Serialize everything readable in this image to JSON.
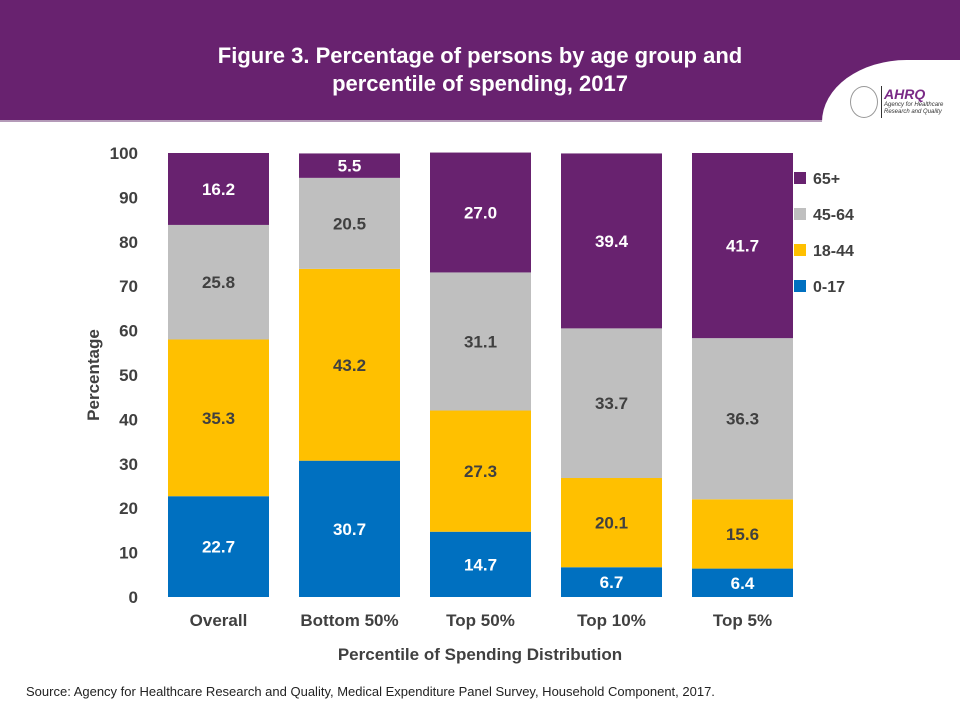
{
  "title_line1": "Figure 3. Percentage of persons by age group and",
  "title_line2": "percentile of spending, 2017",
  "logo": {
    "name": "AHRQ",
    "tagline": "Agency for Healthcare Research and Quality"
  },
  "source": "Source: Agency for Healthcare Research and Quality, Medical Expenditure Panel Survey, Household Component, 2017.",
  "chart_data": {
    "type": "bar",
    "stacked": true,
    "title": "Figure 3. Percentage of persons by age group and percentile of spending, 2017",
    "xlabel": "Percentile of Spending Distribution",
    "ylabel": "Percentage",
    "ylim": [
      0,
      100
    ],
    "yticks": [
      0,
      10,
      20,
      30,
      40,
      50,
      60,
      70,
      80,
      90,
      100
    ],
    "grid": false,
    "legend_position": "right",
    "categories": [
      "Overall",
      "Bottom 50%",
      "Top 50%",
      "Top 10%",
      "Top 5%"
    ],
    "series": [
      {
        "name": "0-17",
        "color": "#0070c0",
        "values": [
          22.7,
          30.7,
          14.7,
          6.7,
          6.4
        ]
      },
      {
        "name": "18-44",
        "color": "#ffc000",
        "values": [
          35.3,
          43.2,
          27.3,
          20.1,
          15.6
        ]
      },
      {
        "name": "45-64",
        "color": "#bfbfbf",
        "values": [
          25.8,
          20.5,
          31.1,
          33.7,
          36.3
        ]
      },
      {
        "name": "65+",
        "color": "#68226f",
        "values": [
          16.2,
          5.5,
          27.0,
          39.4,
          41.7
        ]
      }
    ]
  }
}
